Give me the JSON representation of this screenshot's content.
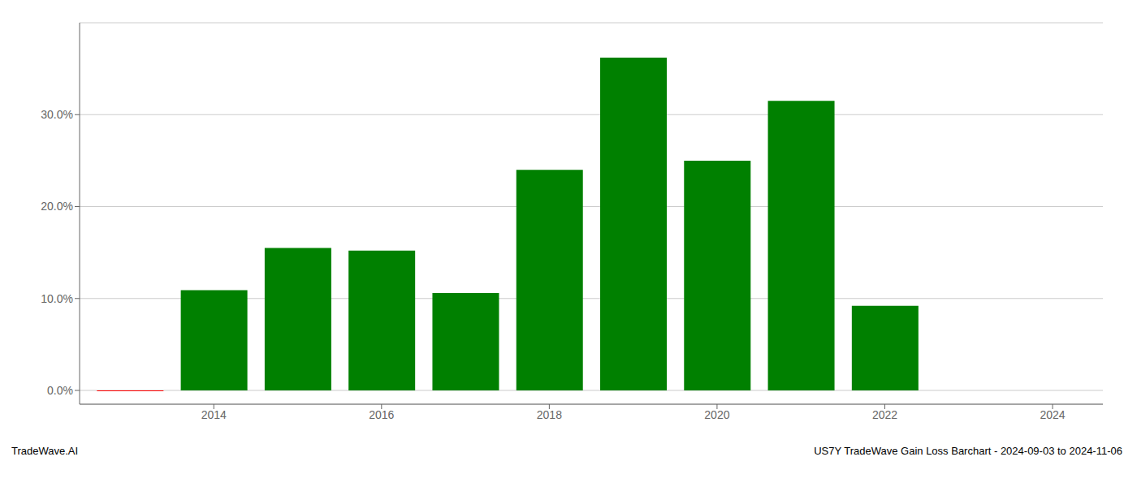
{
  "chart_data": {
    "type": "bar",
    "title": "US7Y TradeWave Gain Loss Barchart - 2024-09-03 to 2024-11-06",
    "annotations": [
      "TradeWave.AI"
    ],
    "x": [
      2013,
      2014,
      2015,
      2016,
      2017,
      2018,
      2019,
      2020,
      2021,
      2022,
      2023
    ],
    "values": [
      -0.08,
      10.9,
      15.5,
      15.2,
      10.6,
      24.0,
      36.2,
      25.0,
      31.5,
      9.2,
      0.0
    ],
    "colors": [
      "#ff0000",
      "#008000",
      "#008000",
      "#008000",
      "#008000",
      "#008000",
      "#008000",
      "#008000",
      "#008000",
      "#008000",
      "#008000"
    ],
    "xlim": [
      2012.4,
      2024.6
    ],
    "ylim": [
      -1.5,
      40
    ],
    "xticks": [
      2014,
      2016,
      2018,
      2020,
      2022,
      2024
    ],
    "yticks": [
      {
        "value": 0.0,
        "label": "0.0%"
      },
      {
        "value": 10.0,
        "label": "10.0%"
      },
      {
        "value": 20.0,
        "label": "20.0%"
      },
      {
        "value": 30.0,
        "label": "30.0%"
      }
    ],
    "grid": true
  }
}
